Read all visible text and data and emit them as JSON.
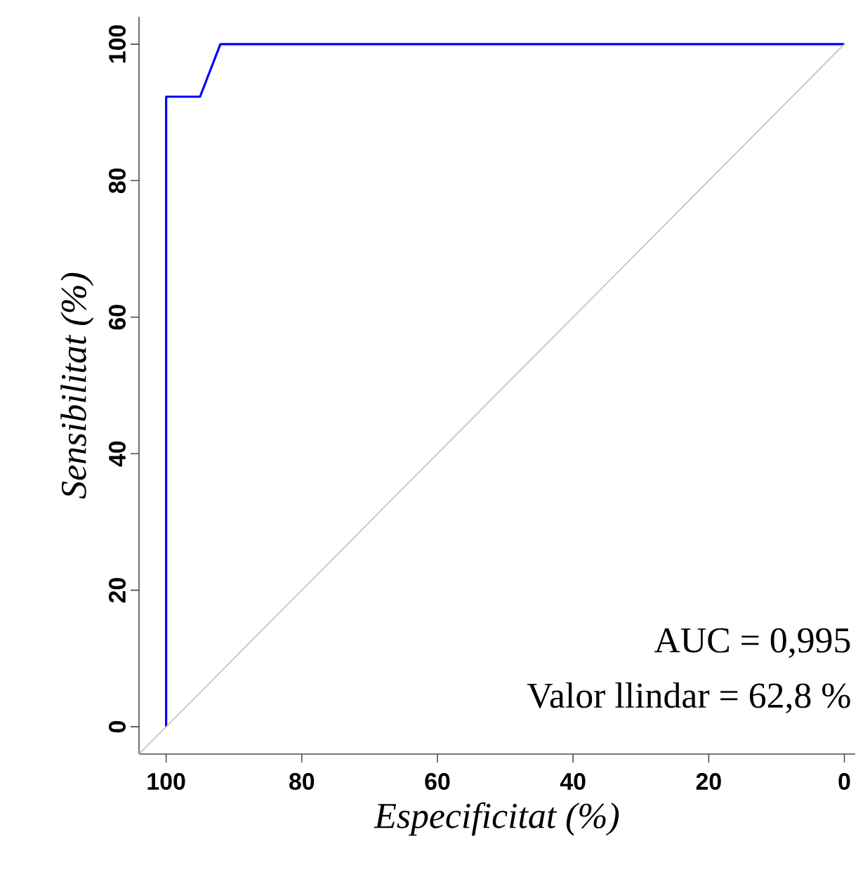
{
  "chart_data": {
    "type": "line",
    "xlabel": "Especificitat (%)",
    "ylabel": "Sensibilitat (%)",
    "xlim": [
      104,
      -1.6
    ],
    "ylim": [
      -4,
      104
    ],
    "xticks": [
      100,
      80,
      60,
      40,
      20,
      0
    ],
    "yticks": [
      0,
      20,
      40,
      60,
      80,
      100
    ],
    "series": [
      {
        "color": "#0000ff",
        "x": [
          100,
          100,
          95,
          92,
          0
        ],
        "values": [
          0,
          92.3,
          92.3,
          100,
          100
        ]
      },
      {
        "color": "#bebebe",
        "x": [
          104,
          0
        ],
        "values": [
          -4,
          100
        ]
      }
    ],
    "annotations": [
      "AUC = 0,995",
      "Valor llindar = 62,8 %"
    ],
    "grid": false,
    "marker": "none",
    "line_style": "solid"
  }
}
